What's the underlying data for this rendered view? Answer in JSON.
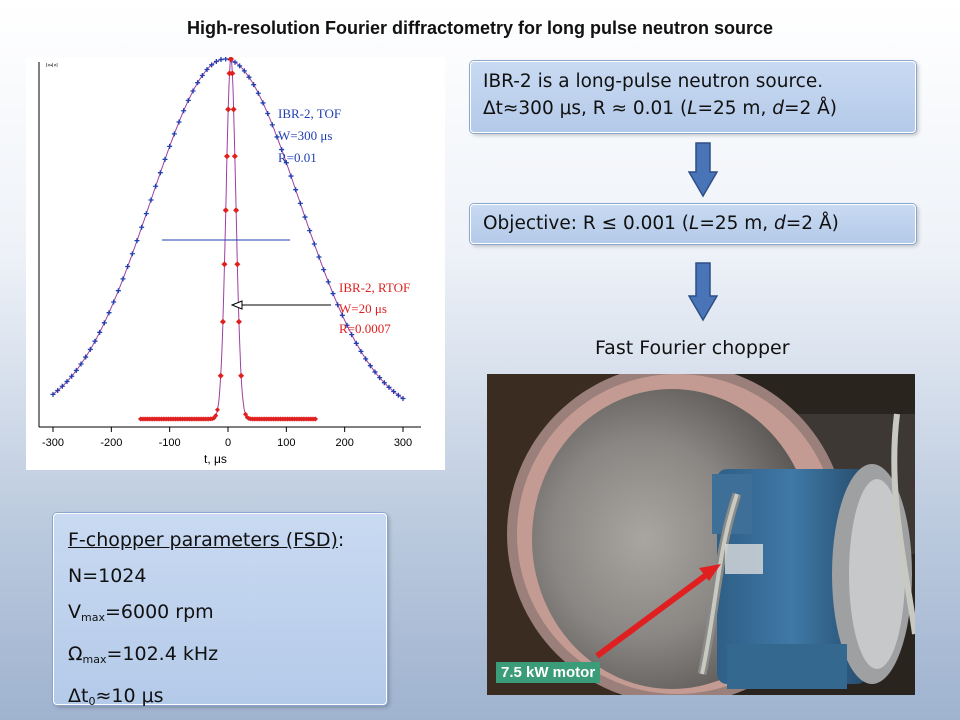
{
  "title": "High-resolution Fourier diffractometry for long pulse neutron source",
  "callout_source": {
    "line1": "IBR-2 is a long-pulse neutron source.",
    "line2_dt": "Δt≈300 μs, R ≈ 0.01 (",
    "line2_L": "L",
    "line2_mid": "=25 m, ",
    "line2_d": "d",
    "line2_end": "=2 Å)"
  },
  "callout_objective": {
    "prefix": "Objective: R ≤ 0.001 (",
    "L": "L",
    "mid": "=25 m, ",
    "d": "d",
    "end": "=2 Å)"
  },
  "subhead": "Fast Fourier chopper",
  "params": {
    "heading": "F-chopper parameters (FSD)",
    "heading_colon": ":",
    "n": "N=1024",
    "vmax_sym": "V",
    "vmax_sub": "max",
    "vmax_val": "=6000 rpm",
    "omega_sym": "Ω",
    "omega_sub": "max",
    "omega_val": "=102.4 kHz",
    "dt_sym": "Δt",
    "dt_sub": "0",
    "dt_val": "≈10 μs"
  },
  "photo": {
    "label": "7.5 kW motor",
    "arrow_color": "#e02020"
  },
  "chart_data": {
    "type": "line",
    "xlabel": "t, μs",
    "ylabel": "I×•I×I",
    "xlim": [
      -300,
      300
    ],
    "ylim": [
      0,
      1
    ],
    "xticks": [
      "-300",
      "-200",
      "-100",
      "0",
      "100",
      "200",
      "300"
    ],
    "series": [
      {
        "name": "IBR-2, TOF",
        "label_lines": [
          "IBR-2, TOF",
          "W=300 μs",
          "R=0.01"
        ],
        "shape": "gaussian",
        "center": -5,
        "fwhm": 300,
        "x_range": [
          -300,
          300
        ],
        "color": "#1f3fb0"
      },
      {
        "name": "IBR-2, RTOF",
        "label_lines": [
          "IBR-2, RTOF",
          "W=20 μs",
          "R=0.0007"
        ],
        "shape": "narrow-peak",
        "center": 5,
        "fwhm": 20,
        "x_range": [
          -150,
          150
        ],
        "color": "#e02020"
      }
    ]
  },
  "colors": {
    "tof": "#1f3fb0",
    "rtof": "#e02020",
    "arrow_blue": "#4a74b8",
    "callout_border": "#8aa7d0"
  }
}
